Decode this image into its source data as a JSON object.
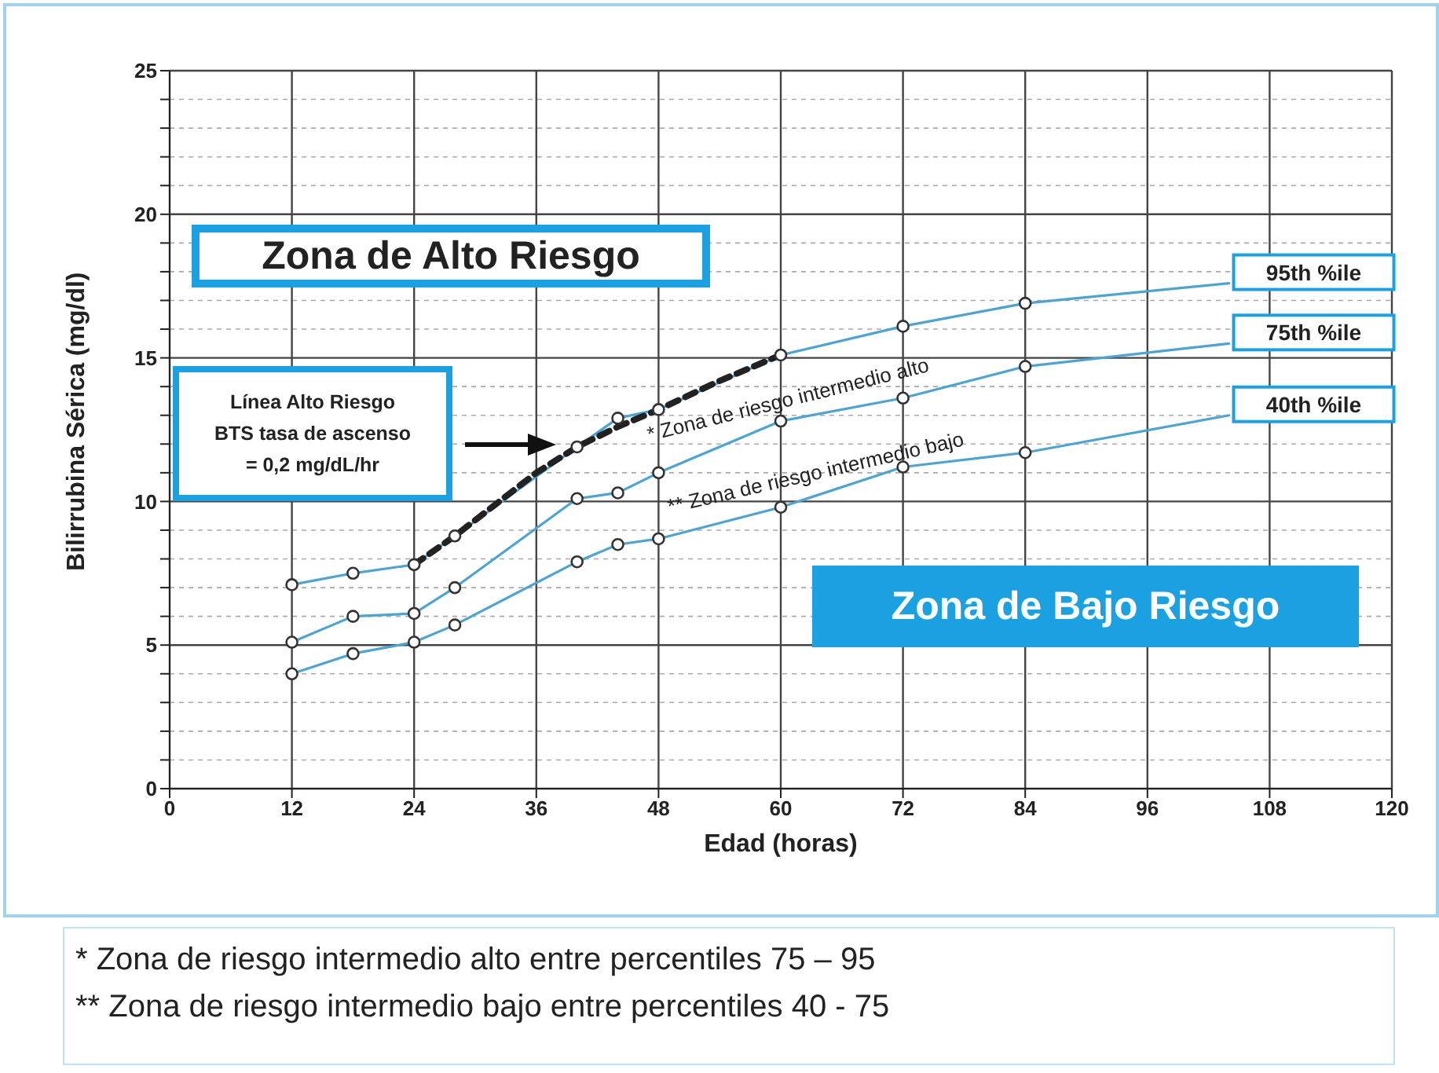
{
  "chart_data": {
    "type": "line",
    "xlabel": "Edad (horas)",
    "ylabel": "Bilirrubina Sérica (mg/dl)",
    "xlim": [
      0,
      120
    ],
    "xticks": [
      0,
      12,
      24,
      36,
      48,
      60,
      72,
      84,
      96,
      108,
      120
    ],
    "ylim": [
      0,
      25
    ],
    "yticks": [
      0,
      {
        "value": 1,
        "label": null
      },
      {
        "value": 2,
        "label": null
      },
      {
        "value": 3,
        "label": null
      },
      {
        "value": 4,
        "label": null
      },
      5,
      {
        "value": 6,
        "label": null
      },
      {
        "value": 7,
        "label": null
      },
      {
        "value": 8,
        "label": null
      },
      {
        "value": 9,
        "label": null
      },
      10,
      {
        "value": 11,
        "label": null
      },
      {
        "value": 12,
        "label": null
      },
      {
        "value": 13,
        "label": null
      },
      {
        "value": 14,
        "label": null
      },
      15,
      {
        "value": 16,
        "label": null
      },
      {
        "value": 17,
        "label": null
      },
      {
        "value": 18,
        "label": null
      },
      {
        "value": 19,
        "label": null
      },
      20,
      {
        "value": 21,
        "label": null
      },
      {
        "value": 22,
        "label": null
      },
      {
        "value": 23,
        "label": null
      },
      {
        "value": 24,
        "label": null
      },
      25
    ],
    "grid": true,
    "marker": "circle",
    "line_style": "solid",
    "series": [
      {
        "name": "95th %ile",
        "color": "#4fa3d1",
        "x": [
          12,
          18,
          24,
          28,
          40,
          44,
          48,
          60,
          72,
          84,
          104
        ],
        "values": [
          7.1,
          7.5,
          7.8,
          8.8,
          11.9,
          12.9,
          13.2,
          15.1,
          16.1,
          16.9,
          17.6
        ]
      },
      {
        "name": "75th %ile",
        "color": "#4fa3d1",
        "x": [
          12,
          18,
          24,
          28,
          40,
          44,
          48,
          60,
          72,
          84,
          104
        ],
        "values": [
          5.1,
          6.0,
          6.1,
          7.0,
          10.1,
          10.3,
          11.0,
          12.8,
          13.6,
          14.7,
          15.5
        ]
      },
      {
        "name": "40th %ile",
        "color": "#4fa3d1",
        "x": [
          12,
          18,
          24,
          28,
          40,
          44,
          48,
          60,
          72,
          84,
          104
        ],
        "values": [
          4.0,
          4.7,
          5.1,
          5.7,
          7.9,
          8.5,
          8.7,
          9.8,
          11.2,
          11.7,
          13.0
        ]
      },
      {
        "color": "#222222",
        "line_style": "dashed",
        "marker": "none",
        "x": [
          24,
          28,
          32,
          36,
          40,
          44,
          48,
          54,
          60
        ],
        "values": [
          7.8,
          8.8,
          9.9,
          11.0,
          11.9,
          12.6,
          13.2,
          14.2,
          15.1
        ]
      }
    ],
    "annotations": [
      "Zona de Alto Riesgo",
      "Línea Alto Riesgo\nBTS tasa de ascenso\n= 0,2 mg/dL/hr",
      "* Zona de riesgo intermedio alto",
      "** Zona de riesgo intermedio bajo",
      "Zona de Bajo Riesgo",
      "* Zona de riesgo intermedio alto entre percentiles 75 – 95",
      "** Zona de riesgo intermedio bajo entre percentiles 40 - 75"
    ]
  }
}
